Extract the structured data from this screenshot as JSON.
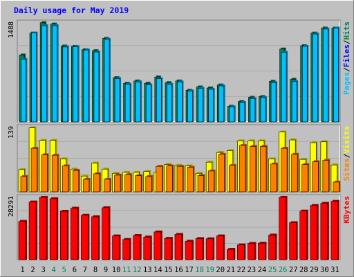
{
  "chart_data": [
    {
      "type": "bar",
      "title": "Daily usage for May 2019",
      "ylabel_parts": [
        "Pages",
        "Files",
        "Hits"
      ],
      "ylabel_separator": "/",
      "ymax_label": "1488",
      "ylim": [
        0,
        1488
      ],
      "categories": [
        "1",
        "2",
        "3",
        "4",
        "5",
        "6",
        "7",
        "8",
        "9",
        "10",
        "11",
        "12",
        "13",
        "14",
        "15",
        "16",
        "17",
        "18",
        "19",
        "20",
        "21",
        "22",
        "23",
        "24",
        "25",
        "26",
        "27",
        "28",
        "29",
        "30",
        "31"
      ],
      "weekend_days": [
        "4",
        "5",
        "11",
        "12",
        "18",
        "19",
        "25",
        "26"
      ],
      "series": [
        {
          "name": "Hits",
          "color": "#00805C",
          "values": [
            1005,
            1335,
            1490,
            1470,
            1140,
            1135,
            1085,
            1070,
            1255,
            665,
            580,
            615,
            580,
            675,
            590,
            615,
            475,
            525,
            510,
            555,
            235,
            305,
            370,
            380,
            610,
            1095,
            640,
            1145,
            1335,
            1410,
            1410
          ]
        },
        {
          "name": "Files",
          "color": "#00C0FF",
          "values": [
            940,
            1335,
            1445,
            1445,
            1125,
            1130,
            1080,
            1050,
            1240,
            650,
            565,
            600,
            555,
            650,
            565,
            600,
            465,
            505,
            490,
            540,
            225,
            290,
            350,
            365,
            590,
            1045,
            605,
            1135,
            1320,
            1395,
            1410
          ]
        },
        {
          "name": "Pages",
          "color": "#0000FF",
          "values": [
            0,
            0,
            0,
            0,
            0,
            0,
            0,
            0,
            0,
            0,
            0,
            0,
            0,
            0,
            0,
            0,
            0,
            0,
            0,
            0,
            0,
            0,
            0,
            0,
            0,
            0,
            0,
            0,
            0,
            0,
            0
          ]
        }
      ]
    },
    {
      "type": "bar",
      "ylabel_parts": [
        "Sites",
        "Visits"
      ],
      "ylabel_separator": "/",
      "ymax_label": "139",
      "ylim": [
        0,
        139
      ],
      "categories": [
        "1",
        "2",
        "3",
        "4",
        "5",
        "6",
        "7",
        "8",
        "9",
        "10",
        "11",
        "12",
        "13",
        "14",
        "15",
        "16",
        "17",
        "18",
        "19",
        "20",
        "21",
        "22",
        "23",
        "24",
        "25",
        "26",
        "27",
        "28",
        "29",
        "30",
        "31"
      ],
      "series": [
        {
          "name": "Visits",
          "color": "#FFFF00",
          "values": [
            48,
            138,
            111,
            111,
            71,
            49,
            34,
            62,
            49,
            40,
            42,
            42,
            44,
            42,
            59,
            57,
            56,
            40,
            64,
            85,
            89,
            110,
            110,
            110,
            71,
            129,
            112,
            70,
            106,
            108,
            58
          ]
        },
        {
          "name": "Sites",
          "color": "#FF8000",
          "values": [
            33,
            94,
            80,
            79,
            56,
            46,
            27,
            39,
            27,
            36,
            37,
            35,
            33,
            55,
            56,
            55,
            53,
            35,
            45,
            81,
            57,
            100,
            98,
            98,
            60,
            94,
            81,
            59,
            65,
            68,
            21
          ]
        }
      ]
    },
    {
      "type": "bar",
      "ylabel_parts": [
        "KBytes"
      ],
      "ymax_label": "28291",
      "ylim": [
        0,
        28291
      ],
      "categories": [
        "1",
        "2",
        "3",
        "4",
        "5",
        "6",
        "7",
        "8",
        "9",
        "10",
        "11",
        "12",
        "13",
        "14",
        "15",
        "16",
        "17",
        "18",
        "19",
        "20",
        "21",
        "22",
        "23",
        "24",
        "25",
        "26",
        "27",
        "28",
        "29",
        "30",
        "31"
      ],
      "series": [
        {
          "name": "KBytes",
          "color": "#FF0000",
          "values": [
            17400,
            26200,
            28300,
            27700,
            22000,
            23400,
            20200,
            19500,
            23600,
            10800,
            9200,
            11000,
            10300,
            12600,
            9700,
            11500,
            8400,
            9600,
            9500,
            10800,
            4700,
            6700,
            7400,
            7500,
            11200,
            28300,
            16800,
            22100,
            24600,
            25600,
            26500
          ]
        }
      ]
    }
  ]
}
